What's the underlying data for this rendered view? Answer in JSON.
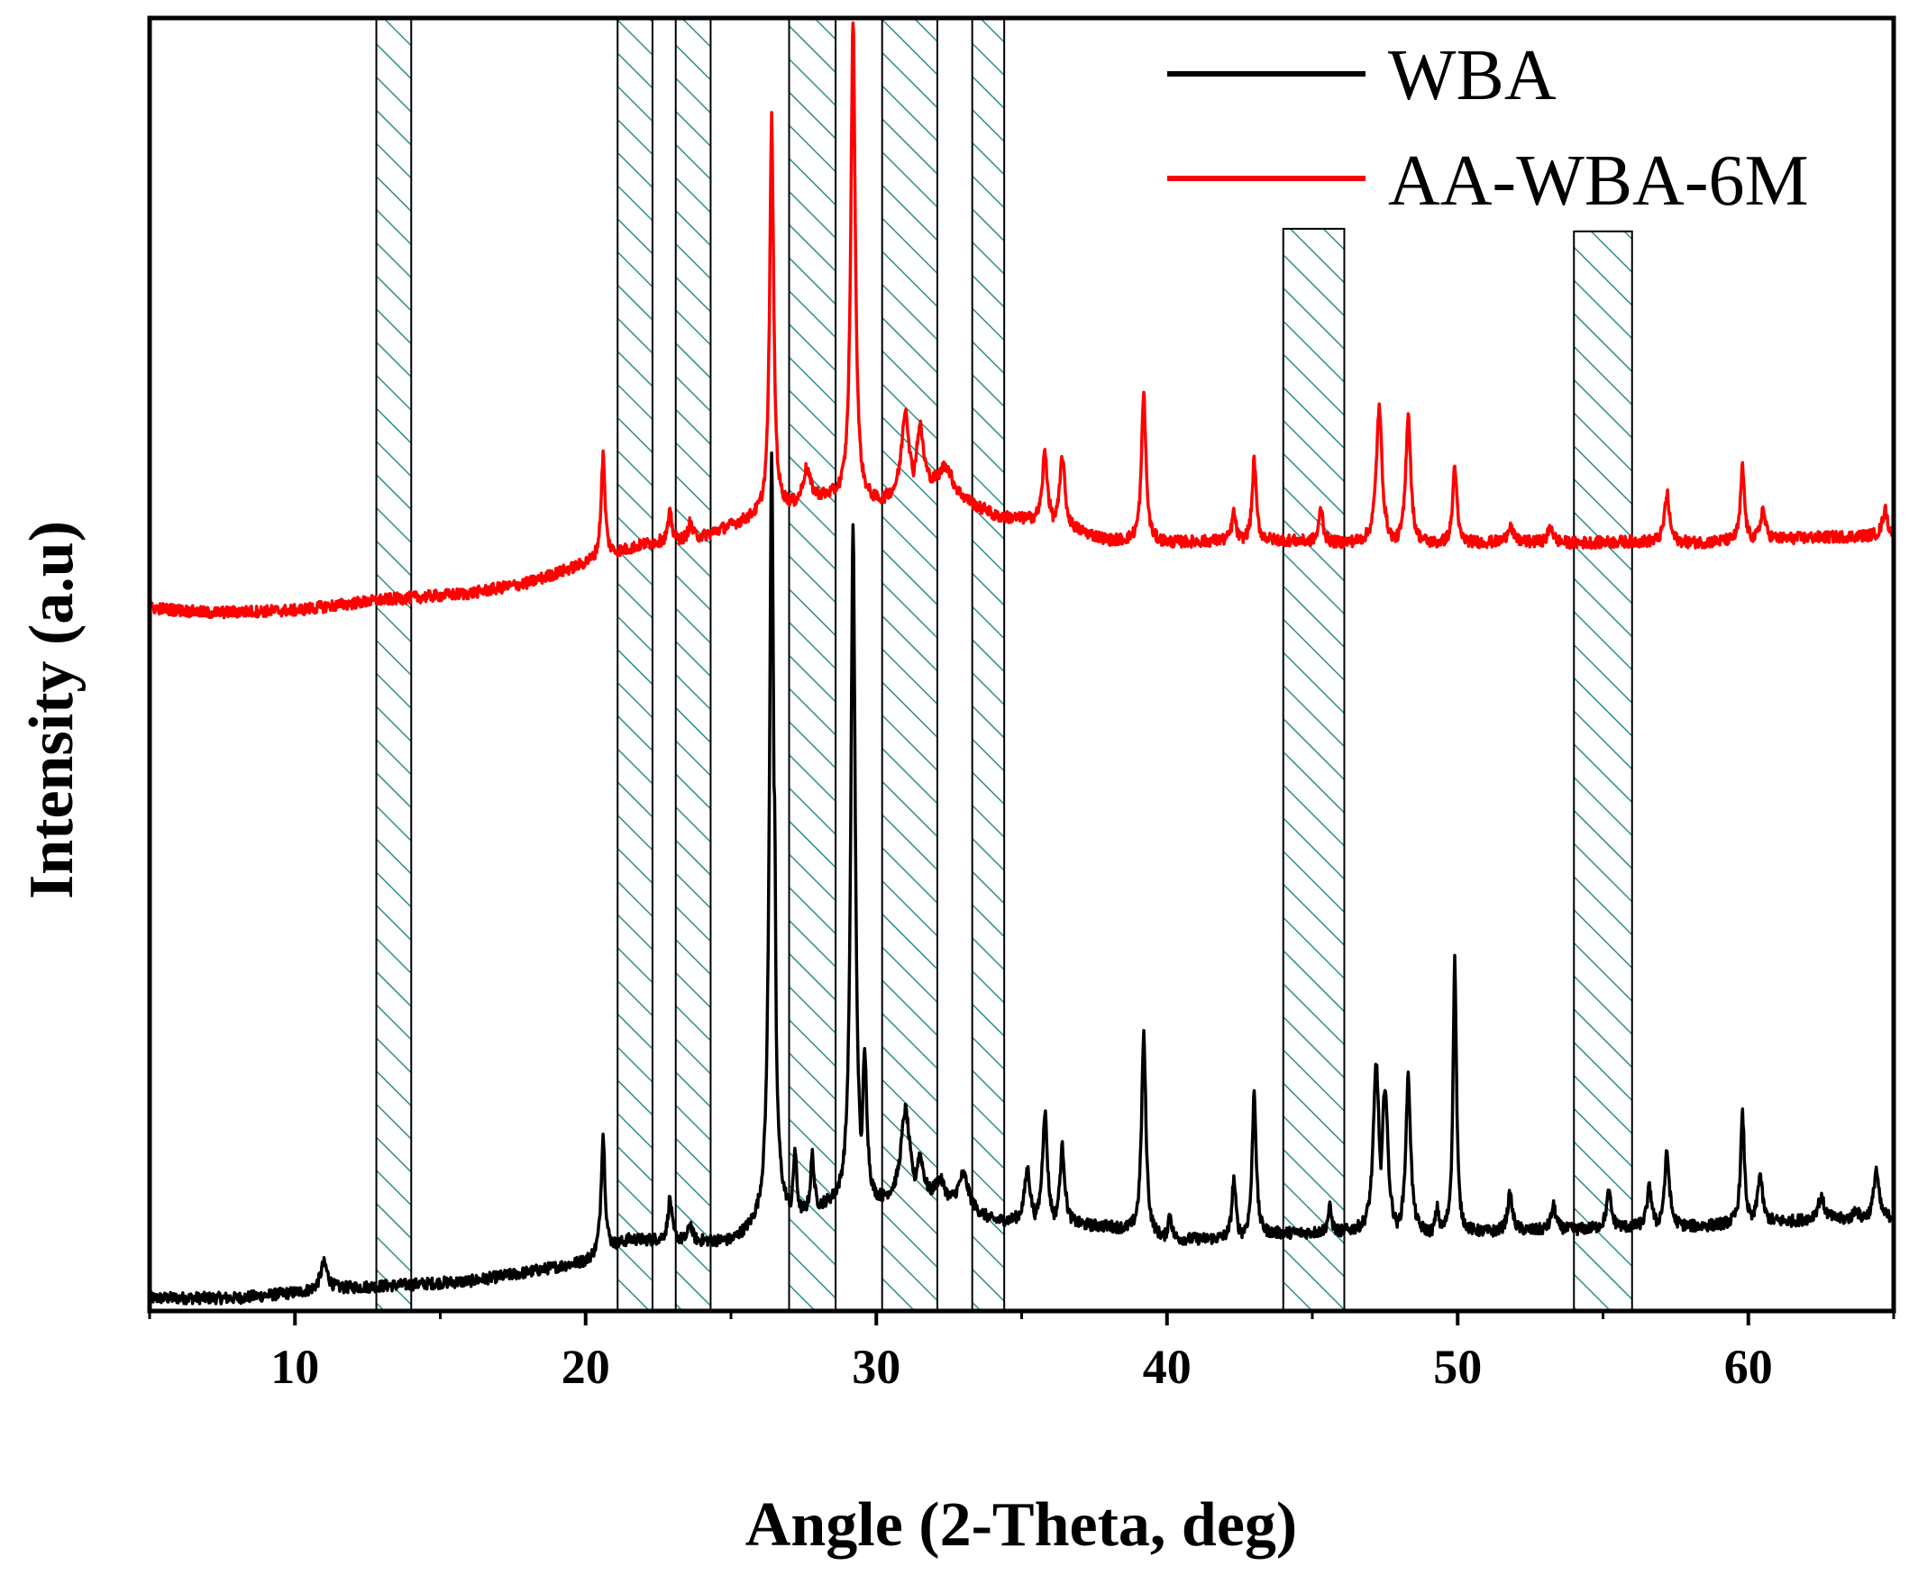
{
  "chart_data": {
    "type": "line",
    "title": "",
    "xlabel": "Angle (2-Theta, deg)",
    "ylabel": "Intensity (a.u)",
    "xlim": [
      5,
      65
    ],
    "ylim": [
      0,
      100
    ],
    "xticks": [
      10,
      20,
      30,
      40,
      50,
      60
    ],
    "xtick_labels": [
      "10",
      "20",
      "30",
      "40",
      "50",
      "60"
    ],
    "yticks_shown": false,
    "legend_position": "top-right",
    "colors": {
      "WBA": "#000000",
      "AA-WBA-6M": "#ff0000",
      "hatch": "#2a8f8f"
    },
    "series": [
      {
        "name": "WBA",
        "color": "#000000",
        "baseline": [
          [
            5,
            1.0
          ],
          [
            8,
            1.0
          ],
          [
            12,
            1.8
          ],
          [
            16,
            2.3
          ],
          [
            18,
            3.0
          ],
          [
            20,
            3.8
          ],
          [
            21.5,
            5.5
          ],
          [
            23,
            5.5
          ],
          [
            25,
            5.3
          ],
          [
            26,
            6.5
          ],
          [
            28,
            8.0
          ],
          [
            30,
            8.5
          ],
          [
            32,
            9.0
          ],
          [
            34,
            7.0
          ],
          [
            36,
            6.8
          ],
          [
            38,
            6.5
          ],
          [
            40,
            5.5
          ],
          [
            42,
            5.6
          ],
          [
            44,
            6.0
          ],
          [
            46,
            6.1
          ],
          [
            48,
            6.0
          ],
          [
            50,
            6.0
          ],
          [
            52,
            6.2
          ],
          [
            54,
            6.3
          ],
          [
            56,
            6.5
          ],
          [
            58,
            6.5
          ],
          [
            60,
            6.8
          ],
          [
            62,
            7.0
          ],
          [
            65,
            7.2
          ]
        ],
        "peaks": [
          [
            11.0,
            3.7,
            0.15
          ],
          [
            20.6,
            13.7,
            0.08
          ],
          [
            22.9,
            8.7,
            0.08
          ],
          [
            23.6,
            6.8,
            0.08
          ],
          [
            26.4,
            66.6,
            0.09
          ],
          [
            26.5,
            40.0,
            0.05
          ],
          [
            27.2,
            12.6,
            0.07
          ],
          [
            27.8,
            12.2,
            0.07
          ],
          [
            29.2,
            60.8,
            0.09
          ],
          [
            29.6,
            20.0,
            0.1
          ],
          [
            31.0,
            15.6,
            0.18
          ],
          [
            31.5,
            12.1,
            0.15
          ],
          [
            32.2,
            10.2,
            0.2
          ],
          [
            33.0,
            10.6,
            0.2
          ],
          [
            35.2,
            11.0,
            0.12
          ],
          [
            35.8,
            15.5,
            0.1
          ],
          [
            36.4,
            12.7,
            0.1
          ],
          [
            39.2,
            21.3,
            0.09
          ],
          [
            40.1,
            7.5,
            0.08
          ],
          [
            42.3,
            10.2,
            0.08
          ],
          [
            43.0,
            17.1,
            0.08
          ],
          [
            45.6,
            8.0,
            0.08
          ],
          [
            47.2,
            19.2,
            0.12
          ],
          [
            47.5,
            17.5,
            0.12
          ],
          [
            48.3,
            18.1,
            0.1
          ],
          [
            49.3,
            8.0,
            0.08
          ],
          [
            49.9,
            27.2,
            0.07
          ],
          [
            51.8,
            9.0,
            0.1
          ],
          [
            53.3,
            8.1,
            0.1
          ],
          [
            55.2,
            9.1,
            0.1
          ],
          [
            56.6,
            9.6,
            0.1
          ],
          [
            57.2,
            12.2,
            0.1
          ],
          [
            59.8,
            15.2,
            0.08
          ],
          [
            60.4,
            10.6,
            0.1
          ],
          [
            62.5,
            8.7,
            0.15
          ],
          [
            63.7,
            7.9,
            0.1
          ],
          [
            64.4,
            11.0,
            0.1
          ]
        ]
      },
      {
        "name": "AA-WBA-6M",
        "color": "#ff0000",
        "baseline": [
          [
            5,
            54.4
          ],
          [
            7,
            54.0
          ],
          [
            10,
            54.2
          ],
          [
            13,
            55.0
          ],
          [
            16,
            55.5
          ],
          [
            18,
            56.3
          ],
          [
            20,
            57.8
          ],
          [
            22,
            59.3
          ],
          [
            24,
            59.9
          ],
          [
            26,
            61.5
          ],
          [
            28,
            63.0
          ],
          [
            30,
            62.5
          ],
          [
            32,
            64.0
          ],
          [
            34,
            61.5
          ],
          [
            36,
            61.0
          ],
          [
            38,
            59.6
          ],
          [
            40,
            59.4
          ],
          [
            42,
            59.6
          ],
          [
            44,
            59.6
          ],
          [
            46,
            59.4
          ],
          [
            48,
            59.3
          ],
          [
            50,
            59.4
          ],
          [
            52,
            59.5
          ],
          [
            54,
            59.4
          ],
          [
            56,
            59.5
          ],
          [
            58,
            59.4
          ],
          [
            60,
            59.6
          ],
          [
            62,
            59.8
          ],
          [
            65,
            60.0
          ]
        ],
        "peaks": [
          [
            20.6,
            66.2,
            0.08
          ],
          [
            22.9,
            61.7,
            0.08
          ],
          [
            23.6,
            61.0,
            0.08
          ],
          [
            25.8,
            62.0,
            0.08
          ],
          [
            26.4,
            92.3,
            0.08
          ],
          [
            27.6,
            65.2,
            0.15
          ],
          [
            29.2,
            100.0,
            0.09
          ],
          [
            31.0,
            69.8,
            0.15
          ],
          [
            31.5,
            68.5,
            0.15
          ],
          [
            32.4,
            65.4,
            0.25
          ],
          [
            33.8,
            62.1,
            0.1
          ],
          [
            35.8,
            66.5,
            0.1
          ],
          [
            36.4,
            66.2,
            0.1
          ],
          [
            39.2,
            71.0,
            0.09
          ],
          [
            42.3,
            61.8,
            0.08
          ],
          [
            43.0,
            65.9,
            0.08
          ],
          [
            45.3,
            62.2,
            0.08
          ],
          [
            47.3,
            69.8,
            0.12
          ],
          [
            48.3,
            69.5,
            0.1
          ],
          [
            49.9,
            65.5,
            0.08
          ],
          [
            51.8,
            60.8,
            0.1
          ],
          [
            53.2,
            60.7,
            0.1
          ],
          [
            57.2,
            63.2,
            0.1
          ],
          [
            59.8,
            65.3,
            0.08
          ],
          [
            60.5,
            62.0,
            0.1
          ],
          [
            64.7,
            62.0,
            0.1
          ]
        ]
      }
    ],
    "hatched_bands": [
      {
        "x0": 12.8,
        "x1": 14.0,
        "y_top": 100
      },
      {
        "x0": 21.1,
        "x1": 22.3,
        "y_top": 100
      },
      {
        "x0": 23.1,
        "x1": 24.3,
        "y_top": 100
      },
      {
        "x0": 27.0,
        "x1": 28.6,
        "y_top": 100
      },
      {
        "x0": 30.2,
        "x1": 32.1,
        "y_top": 100
      },
      {
        "x0": 33.3,
        "x1": 34.4,
        "y_top": 100
      },
      {
        "x0": 44.0,
        "x1": 46.1,
        "y_top": 83.7
      },
      {
        "x0": 54.0,
        "x1": 56.0,
        "y_top": 83.5
      }
    ],
    "legend": [
      {
        "label": "WBA",
        "color": "#000000"
      },
      {
        "label": "AA-WBA-6M",
        "color": "#ff0000"
      }
    ]
  }
}
